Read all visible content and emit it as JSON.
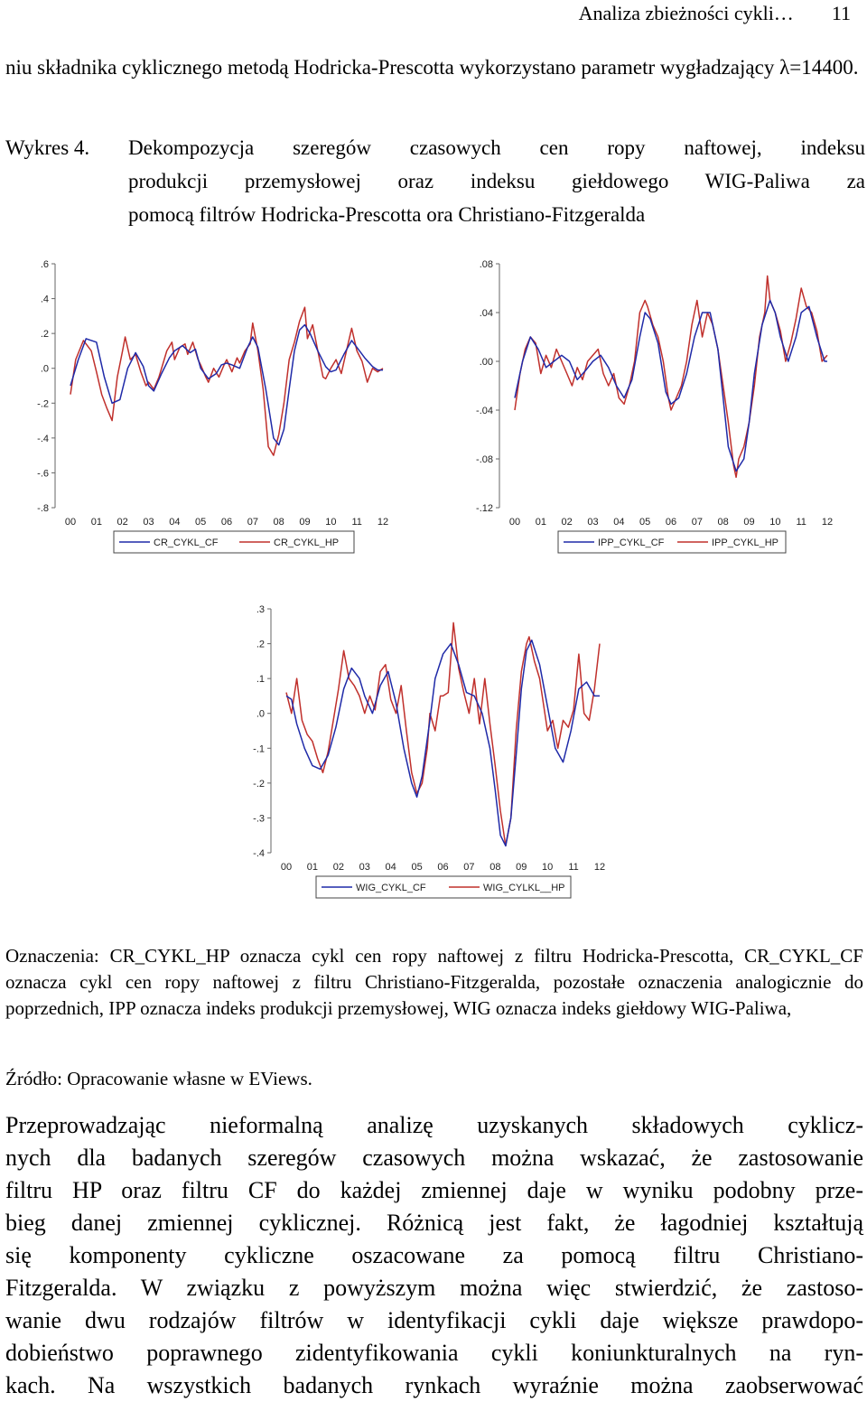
{
  "header": {
    "title": "Analiza zbieżności cykli…",
    "page_number": "11"
  },
  "intro_text": "niu składnika cyklicznego metodą Hodricka-Prescotta wykorzystano parametr wygładzający λ=14400.",
  "caption": {
    "label": "Wykres 4.",
    "line1": "Dekompozycja szeregów czasowych cen ropy naftowej, indeksu",
    "line2": "produkcji przemysłowej oraz indeksu giełdowego WIG-Paliwa za",
    "line3": "pomocą filtrów Hodricka-Prescotta ora Christiano-Fitzgeralda"
  },
  "colors": {
    "cf_series": "#1f2aa8",
    "hp_series": "#c0302c",
    "axis": "#666666"
  },
  "chart_data": [
    {
      "type": "line",
      "x_ticks": [
        "00",
        "01",
        "02",
        "03",
        "04",
        "05",
        "06",
        "07",
        "08",
        "09",
        "10",
        "11",
        "12"
      ],
      "y_ticks": [
        ".6",
        ".4",
        ".2",
        ".0",
        "-.2",
        "-.4",
        "-.6",
        "-.8"
      ],
      "ylim": [
        -0.8,
        0.6
      ],
      "legend": [
        "CR_CYKL_CF",
        "CR_CYKL_HP"
      ],
      "series": [
        {
          "name": "CR_CYKL_CF",
          "color": "#1f2aa8",
          "x": [
            0,
            0.3,
            0.6,
            1.0,
            1.3,
            1.6,
            1.9,
            2.2,
            2.5,
            2.8,
            3.0,
            3.2,
            3.5,
            3.8,
            4.0,
            4.3,
            4.6,
            4.8,
            5.0,
            5.3,
            5.6,
            5.8,
            6.0,
            6.2,
            6.5,
            6.8,
            7.0,
            7.2,
            7.5,
            7.8,
            8.0,
            8.2,
            8.4,
            8.6,
            8.8,
            9.0,
            9.2,
            9.5,
            9.8,
            10.0,
            10.2,
            10.5,
            10.8,
            11.0,
            11.3,
            11.6,
            11.8,
            12.0
          ],
          "y": [
            -0.1,
            0.05,
            0.17,
            0.15,
            -0.05,
            -0.2,
            -0.18,
            0.0,
            0.09,
            0.01,
            -0.1,
            -0.13,
            -0.03,
            0.06,
            0.1,
            0.13,
            0.09,
            0.11,
            0.0,
            -0.06,
            -0.03,
            0.02,
            0.03,
            0.02,
            0.0,
            0.12,
            0.18,
            0.12,
            -0.12,
            -0.4,
            -0.44,
            -0.35,
            -0.12,
            0.1,
            0.22,
            0.25,
            0.2,
            0.1,
            0.01,
            -0.02,
            -0.01,
            0.08,
            0.16,
            0.12,
            0.06,
            0.01,
            -0.01,
            -0.01
          ]
        },
        {
          "name": "CR_CYKL_HP",
          "color": "#c0302c",
          "x": [
            0,
            0.2,
            0.5,
            0.8,
            1.0,
            1.2,
            1.4,
            1.6,
            1.8,
            2.0,
            2.1,
            2.3,
            2.5,
            2.7,
            2.9,
            3.0,
            3.2,
            3.4,
            3.6,
            3.7,
            3.9,
            4.0,
            4.2,
            4.4,
            4.5,
            4.7,
            4.9,
            5.0,
            5.2,
            5.3,
            5.5,
            5.7,
            5.9,
            6.0,
            6.2,
            6.4,
            6.5,
            6.7,
            6.9,
            7.0,
            7.2,
            7.4,
            7.6,
            7.8,
            8.0,
            8.2,
            8.4,
            8.6,
            8.8,
            9.0,
            9.1,
            9.3,
            9.5,
            9.7,
            9.8,
            10.0,
            10.2,
            10.4,
            10.6,
            10.8,
            11.0,
            11.2,
            11.4,
            11.6,
            11.8,
            12.0
          ],
          "y": [
            -0.15,
            0.05,
            0.16,
            0.1,
            -0.02,
            -0.15,
            -0.23,
            -0.3,
            -0.05,
            0.1,
            0.18,
            0.05,
            0.08,
            -0.02,
            -0.1,
            -0.08,
            -0.12,
            -0.05,
            0.05,
            0.1,
            0.15,
            0.05,
            0.12,
            0.14,
            0.08,
            0.15,
            0.05,
            0.02,
            -0.05,
            -0.08,
            0.0,
            -0.05,
            0.02,
            0.05,
            -0.02,
            0.06,
            0.03,
            0.1,
            0.14,
            0.26,
            0.1,
            -0.12,
            -0.45,
            -0.5,
            -0.38,
            -0.2,
            0.05,
            0.15,
            0.27,
            0.35,
            0.17,
            0.25,
            0.1,
            -0.05,
            -0.06,
            0.0,
            0.05,
            -0.03,
            0.1,
            0.23,
            0.1,
            0.04,
            -0.08,
            0.0,
            -0.02,
            0.0
          ]
        }
      ]
    },
    {
      "type": "line",
      "x_ticks": [
        "00",
        "01",
        "02",
        "03",
        "04",
        "05",
        "06",
        "07",
        "08",
        "09",
        "10",
        "11",
        "12"
      ],
      "y_ticks": [
        ".08",
        ".04",
        ".00",
        "-.04",
        "-.08",
        "-.12"
      ],
      "ylim": [
        -0.12,
        0.08
      ],
      "legend": [
        "IPP_CYKL_CF",
        "IPP_CYKL_HP"
      ],
      "series": [
        {
          "name": "IPP_CYKL_CF",
          "color": "#1f2aa8",
          "x": [
            0,
            0.3,
            0.6,
            0.9,
            1.2,
            1.5,
            1.8,
            2.1,
            2.4,
            2.7,
            3.0,
            3.3,
            3.6,
            3.9,
            4.2,
            4.5,
            4.8,
            5.0,
            5.2,
            5.5,
            5.8,
            6.0,
            6.3,
            6.6,
            6.9,
            7.2,
            7.5,
            7.8,
            8.0,
            8.2,
            8.5,
            8.8,
            9.0,
            9.2,
            9.5,
            9.8,
            10.0,
            10.2,
            10.5,
            10.8,
            11.0,
            11.3,
            11.6,
            11.9,
            12.0
          ],
          "y": [
            -0.03,
            0.0,
            0.02,
            0.01,
            -0.005,
            0.0,
            0.005,
            0.0,
            -0.015,
            -0.008,
            0.0,
            0.005,
            -0.005,
            -0.02,
            -0.03,
            -0.015,
            0.02,
            0.04,
            0.035,
            0.015,
            -0.025,
            -0.035,
            -0.03,
            -0.01,
            0.02,
            0.04,
            0.04,
            0.01,
            -0.03,
            -0.07,
            -0.09,
            -0.08,
            -0.05,
            -0.01,
            0.03,
            0.05,
            0.04,
            0.02,
            0.0,
            0.02,
            0.04,
            0.045,
            0.02,
            0.0,
            0.0
          ]
        },
        {
          "name": "IPP_CYKL_HP",
          "color": "#c0302c",
          "x": [
            0,
            0.2,
            0.4,
            0.6,
            0.8,
            1.0,
            1.2,
            1.4,
            1.6,
            1.8,
            2.0,
            2.2,
            2.4,
            2.6,
            2.8,
            3.0,
            3.2,
            3.4,
            3.6,
            3.8,
            4.0,
            4.2,
            4.4,
            4.6,
            4.8,
            5.0,
            5.1,
            5.3,
            5.5,
            5.7,
            5.9,
            6.0,
            6.2,
            6.4,
            6.6,
            6.8,
            7.0,
            7.2,
            7.4,
            7.6,
            7.8,
            8.0,
            8.2,
            8.4,
            8.5,
            8.6,
            8.8,
            9.0,
            9.2,
            9.4,
            9.6,
            9.7,
            9.8,
            10.0,
            10.2,
            10.4,
            10.6,
            10.8,
            11.0,
            11.2,
            11.4,
            11.6,
            11.8,
            12.0
          ],
          "y": [
            -0.04,
            -0.01,
            0.01,
            0.02,
            0.015,
            -0.01,
            0.005,
            -0.005,
            0.01,
            0.0,
            -0.01,
            -0.02,
            -0.005,
            -0.015,
            0.0,
            0.005,
            0.01,
            -0.01,
            -0.02,
            -0.01,
            -0.03,
            -0.035,
            -0.02,
            0.0,
            0.04,
            0.05,
            0.045,
            0.03,
            0.02,
            0.0,
            -0.03,
            -0.04,
            -0.03,
            -0.02,
            0.0,
            0.03,
            0.05,
            0.02,
            0.04,
            0.03,
            0.01,
            -0.02,
            -0.05,
            -0.085,
            -0.095,
            -0.08,
            -0.07,
            -0.05,
            -0.02,
            0.02,
            0.04,
            0.07,
            0.05,
            0.04,
            0.025,
            0.0,
            0.015,
            0.035,
            0.06,
            0.045,
            0.04,
            0.025,
            0.0,
            0.005
          ]
        }
      ]
    },
    {
      "type": "line",
      "x_ticks": [
        "00",
        "01",
        "02",
        "03",
        "04",
        "05",
        "06",
        "07",
        "08",
        "09",
        "10",
        "11",
        "12"
      ],
      "y_ticks": [
        ".3",
        ".2",
        ".1",
        ".0",
        "-.1",
        "-.2",
        "-.3",
        "-.4"
      ],
      "ylim": [
        -0.4,
        0.3
      ],
      "legend": [
        "WIG_CYKL_CF",
        "WIG_CYLKL__HP"
      ],
      "series": [
        {
          "name": "WIG_CYKL_CF",
          "color": "#1f2aa8",
          "x": [
            0,
            0.2,
            0.4,
            0.7,
            1.0,
            1.3,
            1.6,
            1.9,
            2.2,
            2.5,
            2.8,
            3.0,
            3.3,
            3.6,
            3.9,
            4.2,
            4.5,
            4.8,
            5.0,
            5.2,
            5.5,
            5.7,
            6.0,
            6.3,
            6.6,
            6.9,
            7.2,
            7.5,
            7.8,
            8.0,
            8.2,
            8.4,
            8.6,
            8.8,
            9.0,
            9.2,
            9.4,
            9.7,
            10.0,
            10.3,
            10.6,
            10.9,
            11.2,
            11.5,
            11.8,
            12.0
          ],
          "y": [
            0.05,
            0.04,
            -0.03,
            -0.1,
            -0.15,
            -0.16,
            -0.12,
            -0.04,
            0.07,
            0.13,
            0.1,
            0.05,
            0.0,
            0.08,
            0.12,
            0.03,
            -0.1,
            -0.2,
            -0.24,
            -0.18,
            -0.02,
            0.1,
            0.17,
            0.2,
            0.14,
            0.06,
            0.05,
            0.0,
            -0.1,
            -0.22,
            -0.35,
            -0.38,
            -0.3,
            -0.12,
            0.07,
            0.18,
            0.21,
            0.14,
            0.02,
            -0.1,
            -0.14,
            -0.05,
            0.07,
            0.09,
            0.05,
            0.05
          ]
        },
        {
          "name": "WIG_CYLKL__HP",
          "color": "#c0302c",
          "x": [
            0,
            0.2,
            0.4,
            0.6,
            0.8,
            1.0,
            1.2,
            1.4,
            1.6,
            1.8,
            2.0,
            2.2,
            2.4,
            2.6,
            2.8,
            3.0,
            3.2,
            3.4,
            3.6,
            3.8,
            4.0,
            4.2,
            4.4,
            4.6,
            4.8,
            5.0,
            5.2,
            5.4,
            5.5,
            5.7,
            5.9,
            6.0,
            6.2,
            6.4,
            6.6,
            6.8,
            7.0,
            7.2,
            7.4,
            7.6,
            7.8,
            8.0,
            8.2,
            8.4,
            8.6,
            8.8,
            9.0,
            9.2,
            9.3,
            9.5,
            9.7,
            9.9,
            10.0,
            10.2,
            10.4,
            10.6,
            10.8,
            11.0,
            11.2,
            11.4,
            11.6,
            11.8,
            12.0
          ],
          "y": [
            0.06,
            0.0,
            0.1,
            -0.02,
            -0.06,
            -0.08,
            -0.13,
            -0.17,
            -0.11,
            -0.02,
            0.07,
            0.18,
            0.1,
            0.08,
            0.05,
            0.0,
            0.05,
            0.01,
            0.12,
            0.14,
            0.04,
            0.0,
            0.08,
            -0.05,
            -0.17,
            -0.23,
            -0.2,
            -0.1,
            0.0,
            -0.05,
            0.05,
            0.05,
            0.06,
            0.26,
            0.13,
            0.06,
            0.0,
            0.1,
            -0.03,
            0.1,
            -0.03,
            -0.15,
            -0.28,
            -0.38,
            -0.3,
            -0.05,
            0.12,
            0.2,
            0.22,
            0.15,
            0.1,
            0.0,
            -0.05,
            -0.02,
            -0.1,
            -0.02,
            -0.04,
            0.01,
            0.17,
            0.0,
            -0.02,
            0.07,
            0.2
          ]
        }
      ]
    }
  ],
  "notes": {
    "oznaczenia": "Oznaczenia: CR_CYKL_HP oznacza cykl cen ropy naftowej z filtru Hodricka-Prescotta, CR_CYKL_CF oznacza cykl cen ropy naftowej z filtru Christiano-Fitzgeralda, pozostałe oznaczenia analogicznie do poprzednich, IPP oznacza indeks produkcji przemysłowej, WIG oznacza indeks giełdowy WIG-Paliwa,",
    "zrodlo": "Źródło: Opracowanie własne w EViews."
  },
  "body_lines": [
    "Przeprowadzając nieformalną analizę uzyskanych składowych cyklicz-",
    "nych dla badanych szeregów czasowych można wskazać, że zastosowanie",
    "filtru HP oraz filtru CF do każdej zmiennej daje w wyniku podobny prze-",
    "bieg danej zmiennej cyklicznej. Różnicą jest fakt, że łagodniej kształtują",
    "się komponenty cykliczne oszacowane za pomocą filtru Christiano-",
    "Fitzgeralda. W związku z powyższym można więc stwierdzić, że zastoso-",
    "wanie dwu rodzajów filtrów w identyfikacji cykli daje większe prawdopo-",
    "dobieństwo poprawnego zidentyfikowania cykli koniunkturalnych na ryn-",
    "kach. Na wszystkich badanych rynkach wyraźnie można zaobserwować"
  ]
}
